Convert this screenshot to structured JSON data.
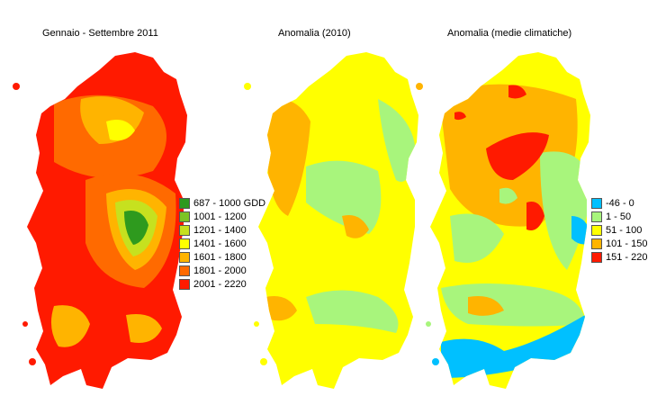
{
  "panels": [
    {
      "title": "Gennaio - Settembre 2011",
      "legend": [
        {
          "label": "687 - 1000 GDD",
          "color": "#2e9a1e"
        },
        {
          "label": "1001 - 1200",
          "color": "#7cc424"
        },
        {
          "label": "1201 - 1400",
          "color": "#c6e11f"
        },
        {
          "label": "1401 - 1600",
          "color": "#ffff00"
        },
        {
          "label": "1601 - 1800",
          "color": "#ffb400"
        },
        {
          "label": "1801 - 2000",
          "color": "#ff6a00"
        },
        {
          "label": "2001 - 2220",
          "color": "#ff1a00"
        }
      ]
    },
    {
      "title": "Anomalia (2010)"
    },
    {
      "title": "Anomalia (medie climatiche)",
      "legend": [
        {
          "label": "-46 - 0",
          "color": "#00c0ff"
        },
        {
          "label": "1 - 50",
          "color": "#a8f57c"
        },
        {
          "label": "51 - 100",
          "color": "#ffff00"
        },
        {
          "label": "101 - 150",
          "color": "#ffb400"
        },
        {
          "label": "151 - 220",
          "color": "#ff1a00"
        }
      ]
    }
  ]
}
